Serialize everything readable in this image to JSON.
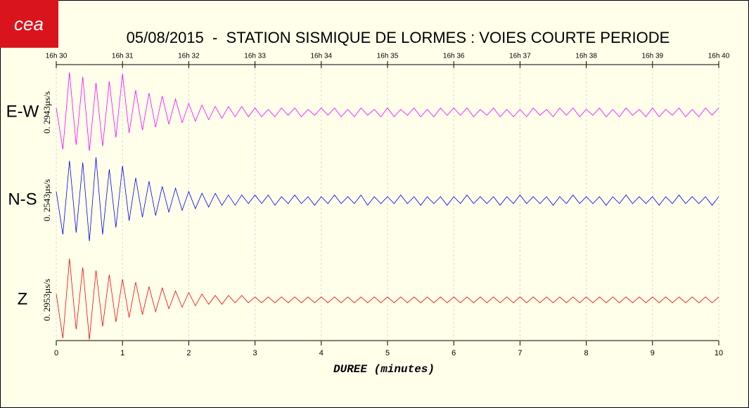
{
  "logo": "cea",
  "chart_data": {
    "type": "seismogram",
    "title": "05/08/2015  -  STATION SISMIQUE DE LORMES : VOIES COURTE PERIODE",
    "xlabel": "DUREE (minutes)",
    "xlim": [
      0,
      10
    ],
    "xticks": [
      0,
      1,
      2,
      3,
      4,
      5,
      6,
      7,
      8,
      9,
      10
    ],
    "top_xticks": [
      {
        "value": 0,
        "label": "16h 30"
      },
      {
        "value": 1,
        "label": "16h 31"
      },
      {
        "value": 2,
        "label": "16h 32"
      },
      {
        "value": 3,
        "label": "16h 33"
      },
      {
        "value": 4,
        "label": "16h 34"
      },
      {
        "value": 5,
        "label": "16h 35"
      },
      {
        "value": 6,
        "label": "16h 36"
      },
      {
        "value": 7,
        "label": "16h 37"
      },
      {
        "value": 8,
        "label": "16h 38"
      },
      {
        "value": 9,
        "label": "16h 39"
      },
      {
        "value": 10,
        "label": "16h 40"
      }
    ],
    "grid": true,
    "x": [
      0,
      0.1,
      0.2,
      0.3,
      0.4,
      0.5,
      0.6,
      0.7,
      0.8,
      0.9,
      1,
      1.1,
      1.2,
      1.3,
      1.4,
      1.5,
      1.6,
      1.7,
      1.8,
      1.9,
      2,
      2.1,
      2.2,
      2.3,
      2.4,
      2.5,
      2.6,
      2.7,
      2.8,
      2.9,
      3,
      3.1,
      3.2,
      3.3,
      3.4,
      3.5,
      3.6,
      3.7,
      3.8,
      3.9,
      4,
      4.1,
      4.2,
      4.3,
      4.4,
      4.5,
      4.6,
      4.7,
      4.8,
      4.9,
      5,
      5.1,
      5.2,
      5.3,
      5.4,
      5.5,
      5.6,
      5.7,
      5.8,
      5.9,
      6,
      6.1,
      6.2,
      6.3,
      6.4,
      6.5,
      6.6,
      6.7,
      6.8,
      6.9,
      7,
      7.1,
      7.2,
      7.3,
      7.4,
      7.5,
      7.6,
      7.7,
      7.8,
      7.9,
      8,
      8.1,
      8.2,
      8.3,
      8.4,
      8.5,
      8.6,
      8.7,
      8.8,
      8.9,
      9,
      9.1,
      9.2,
      9.3,
      9.4,
      9.5,
      9.6,
      9.7,
      9.8,
      9.9,
      10
    ],
    "series": [
      {
        "name": "E-W",
        "color": "#ff00ff",
        "scale_label": "0. 2943µs/s",
        "ylim": [
          -0.2943,
          0.2943
        ],
        "values": [
          0.03,
          -0.25,
          0.27,
          -0.22,
          0.24,
          -0.26,
          0.2,
          -0.23,
          0.21,
          -0.17,
          0.26,
          -0.14,
          0.15,
          -0.12,
          0.13,
          -0.1,
          0.11,
          -0.08,
          0.09,
          -0.07,
          0.06,
          -0.06,
          0.05,
          -0.05,
          0.04,
          -0.04,
          0.04,
          -0.03,
          0.04,
          -0.03,
          0.03,
          -0.03,
          0.02,
          -0.03,
          0.03,
          -0.02,
          0.03,
          -0.03,
          0.02,
          -0.02,
          0.03,
          -0.02,
          0.03,
          -0.03,
          0.02,
          -0.03,
          0.03,
          -0.02,
          0.02,
          -0.03,
          0.03,
          -0.03,
          0.02,
          -0.02,
          0.03,
          -0.03,
          0.02,
          -0.03,
          0.03,
          -0.02,
          0.03,
          -0.02,
          0.03,
          -0.03,
          0.02,
          -0.02,
          0.03,
          -0.03,
          0.02,
          -0.03,
          0.02,
          -0.03,
          0.03,
          -0.02,
          0.02,
          -0.03,
          0.03,
          -0.02,
          0.03,
          -0.03,
          0.02,
          -0.02,
          0.03,
          -0.03,
          0.02,
          -0.03,
          0.03,
          -0.02,
          0.02,
          -0.03,
          0.03,
          -0.03,
          0.02,
          -0.02,
          0.03,
          -0.03,
          0.02,
          -0.03,
          0.03,
          -0.02,
          0.03
        ]
      },
      {
        "name": "N-S",
        "color": "#0000ff",
        "scale_label": "0. 2543µs/s",
        "ylim": [
          -0.2543,
          0.2543
        ],
        "values": [
          0.05,
          -0.2,
          0.23,
          -0.19,
          0.22,
          -0.24,
          0.25,
          -0.2,
          0.18,
          -0.16,
          0.2,
          -0.12,
          0.13,
          -0.1,
          0.11,
          -0.09,
          0.08,
          -0.07,
          0.07,
          -0.06,
          0.05,
          -0.05,
          0.04,
          -0.04,
          0.04,
          -0.03,
          0.03,
          -0.03,
          0.03,
          -0.02,
          0.03,
          -0.02,
          0.03,
          -0.03,
          0.02,
          -0.02,
          0.03,
          -0.02,
          0.02,
          -0.03,
          0.02,
          -0.02,
          0.03,
          -0.02,
          0.02,
          -0.02,
          0.03,
          -0.03,
          0.02,
          -0.02,
          0.02,
          -0.02,
          0.03,
          -0.02,
          0.02,
          -0.03,
          0.02,
          -0.02,
          0.02,
          -0.03,
          0.02,
          -0.02,
          0.03,
          -0.02,
          0.02,
          -0.02,
          0.02,
          -0.03,
          0.02,
          -0.02,
          0.03,
          -0.02,
          0.02,
          -0.02,
          0.02,
          -0.03,
          0.02,
          -0.02,
          0.03,
          -0.02,
          0.02,
          -0.02,
          0.02,
          -0.03,
          0.02,
          -0.02,
          0.03,
          -0.02,
          0.02,
          -0.02,
          0.02,
          -0.03,
          0.02,
          -0.02,
          0.03,
          -0.02,
          0.02,
          -0.02,
          0.02,
          -0.03,
          0.02
        ]
      },
      {
        "name": "Z",
        "color": "#ff0000",
        "scale_label": "0. 2953µs/s",
        "ylim": [
          -0.2953,
          0.2953
        ],
        "values": [
          0.04,
          -0.26,
          0.28,
          -0.2,
          0.22,
          -0.27,
          0.2,
          -0.18,
          0.17,
          -0.15,
          0.14,
          -0.12,
          0.12,
          -0.1,
          0.09,
          -0.08,
          0.08,
          -0.06,
          0.06,
          -0.05,
          0.05,
          -0.04,
          0.04,
          -0.03,
          0.03,
          -0.03,
          0.03,
          -0.02,
          0.03,
          -0.02,
          0.02,
          -0.02,
          0.02,
          -0.02,
          0.02,
          -0.02,
          0.02,
          -0.02,
          0.02,
          -0.02,
          0.02,
          -0.02,
          0.02,
          -0.02,
          0.02,
          -0.02,
          0.02,
          -0.02,
          0.02,
          -0.02,
          0.02,
          -0.02,
          0.02,
          -0.02,
          0.02,
          -0.02,
          0.02,
          -0.02,
          0.02,
          -0.02,
          0.02,
          -0.02,
          0.02,
          -0.02,
          0.02,
          -0.02,
          0.02,
          -0.02,
          0.02,
          -0.02,
          0.02,
          -0.02,
          0.02,
          -0.02,
          0.02,
          -0.02,
          0.02,
          -0.02,
          0.02,
          -0.02,
          0.02,
          -0.02,
          0.02,
          -0.02,
          0.02,
          -0.02,
          0.02,
          -0.02,
          0.02,
          -0.02,
          0.02,
          -0.02,
          0.02,
          -0.02,
          0.02,
          -0.02,
          0.02,
          -0.02,
          0.02,
          -0.02,
          0.02
        ]
      }
    ]
  }
}
